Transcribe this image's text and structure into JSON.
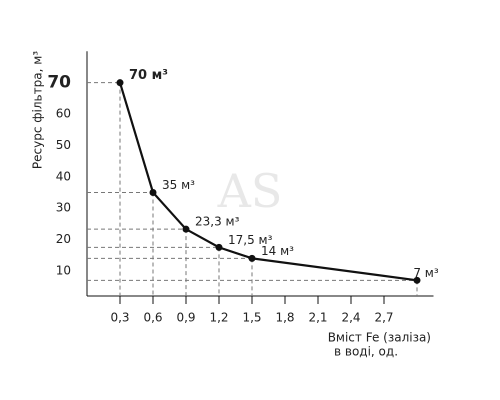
{
  "chart_data": {
    "type": "line",
    "watermark": "AS",
    "y_label": "Ресурс фільтра, м³",
    "x_label_lines": [
      "Вміст Fe (заліза)",
      "в воді, од."
    ],
    "x": [
      0.3,
      0.6,
      0.9,
      1.2,
      1.5,
      3.0
    ],
    "series": [
      {
        "color": "#111111",
        "values": [
          70,
          35,
          23.3,
          17.5,
          14,
          7
        ],
        "value_labels": [
          "70 м³",
          "35 м³",
          "23,3 м³",
          "17,5 м³",
          "14 м³",
          "7 м³"
        ]
      }
    ],
    "xlim": [
      0,
      3.15
    ],
    "ylim": [
      2,
      80
    ],
    "xticks": [
      {
        "value": 0.3,
        "label": "0,3"
      },
      {
        "value": 0.6,
        "label": "0,6"
      },
      {
        "value": 0.9,
        "label": "0,9"
      },
      {
        "value": 1.2,
        "label": "1,2"
      },
      {
        "value": 1.5,
        "label": "1,5"
      },
      {
        "value": 1.8,
        "label": "1,8"
      },
      {
        "value": 2.1,
        "label": "2,1"
      },
      {
        "value": 2.4,
        "label": "2,4"
      },
      {
        "value": 2.7,
        "label": "2,7"
      }
    ],
    "yticks": [
      10,
      20,
      30,
      40,
      50,
      60,
      70
    ],
    "guides": true
  }
}
